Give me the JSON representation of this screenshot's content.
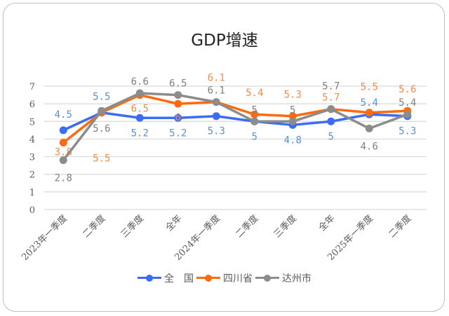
{
  "chart_data": {
    "type": "line",
    "title": "GDP增速",
    "categories": [
      "2023年一季度",
      "二季度",
      "三季度",
      "全年",
      "2024年一季度",
      "二季度",
      "三季度",
      "全年",
      "2025年一季度",
      "二季度"
    ],
    "ylim": [
      0,
      7
    ],
    "yticks": [
      "0",
      "1",
      "2",
      "3",
      "4",
      "5",
      "6",
      "7"
    ],
    "grid": true,
    "legend_position": "bottom",
    "series": [
      {
        "name": "全　国",
        "color": "#3b6cf6",
        "label_color": "#5b8fd6",
        "values": [
          4.5,
          5.5,
          5.2,
          5.2,
          5.3,
          5,
          4.8,
          5,
          5.4,
          5.3
        ]
      },
      {
        "name": "四川省",
        "color": "#ff6a0d",
        "label_color": "#f08c4a",
        "values": [
          3.8,
          5.5,
          6.5,
          6,
          6.1,
          5.4,
          5.3,
          5.7,
          5.5,
          5.6
        ]
      },
      {
        "name": "达州市",
        "color": "#8c8c8c",
        "label_color": "#7f7f7f",
        "values": [
          2.8,
          5.6,
          6.6,
          6.5,
          6.1,
          5,
          5,
          5.7,
          4.6,
          5.4
        ]
      }
    ]
  }
}
